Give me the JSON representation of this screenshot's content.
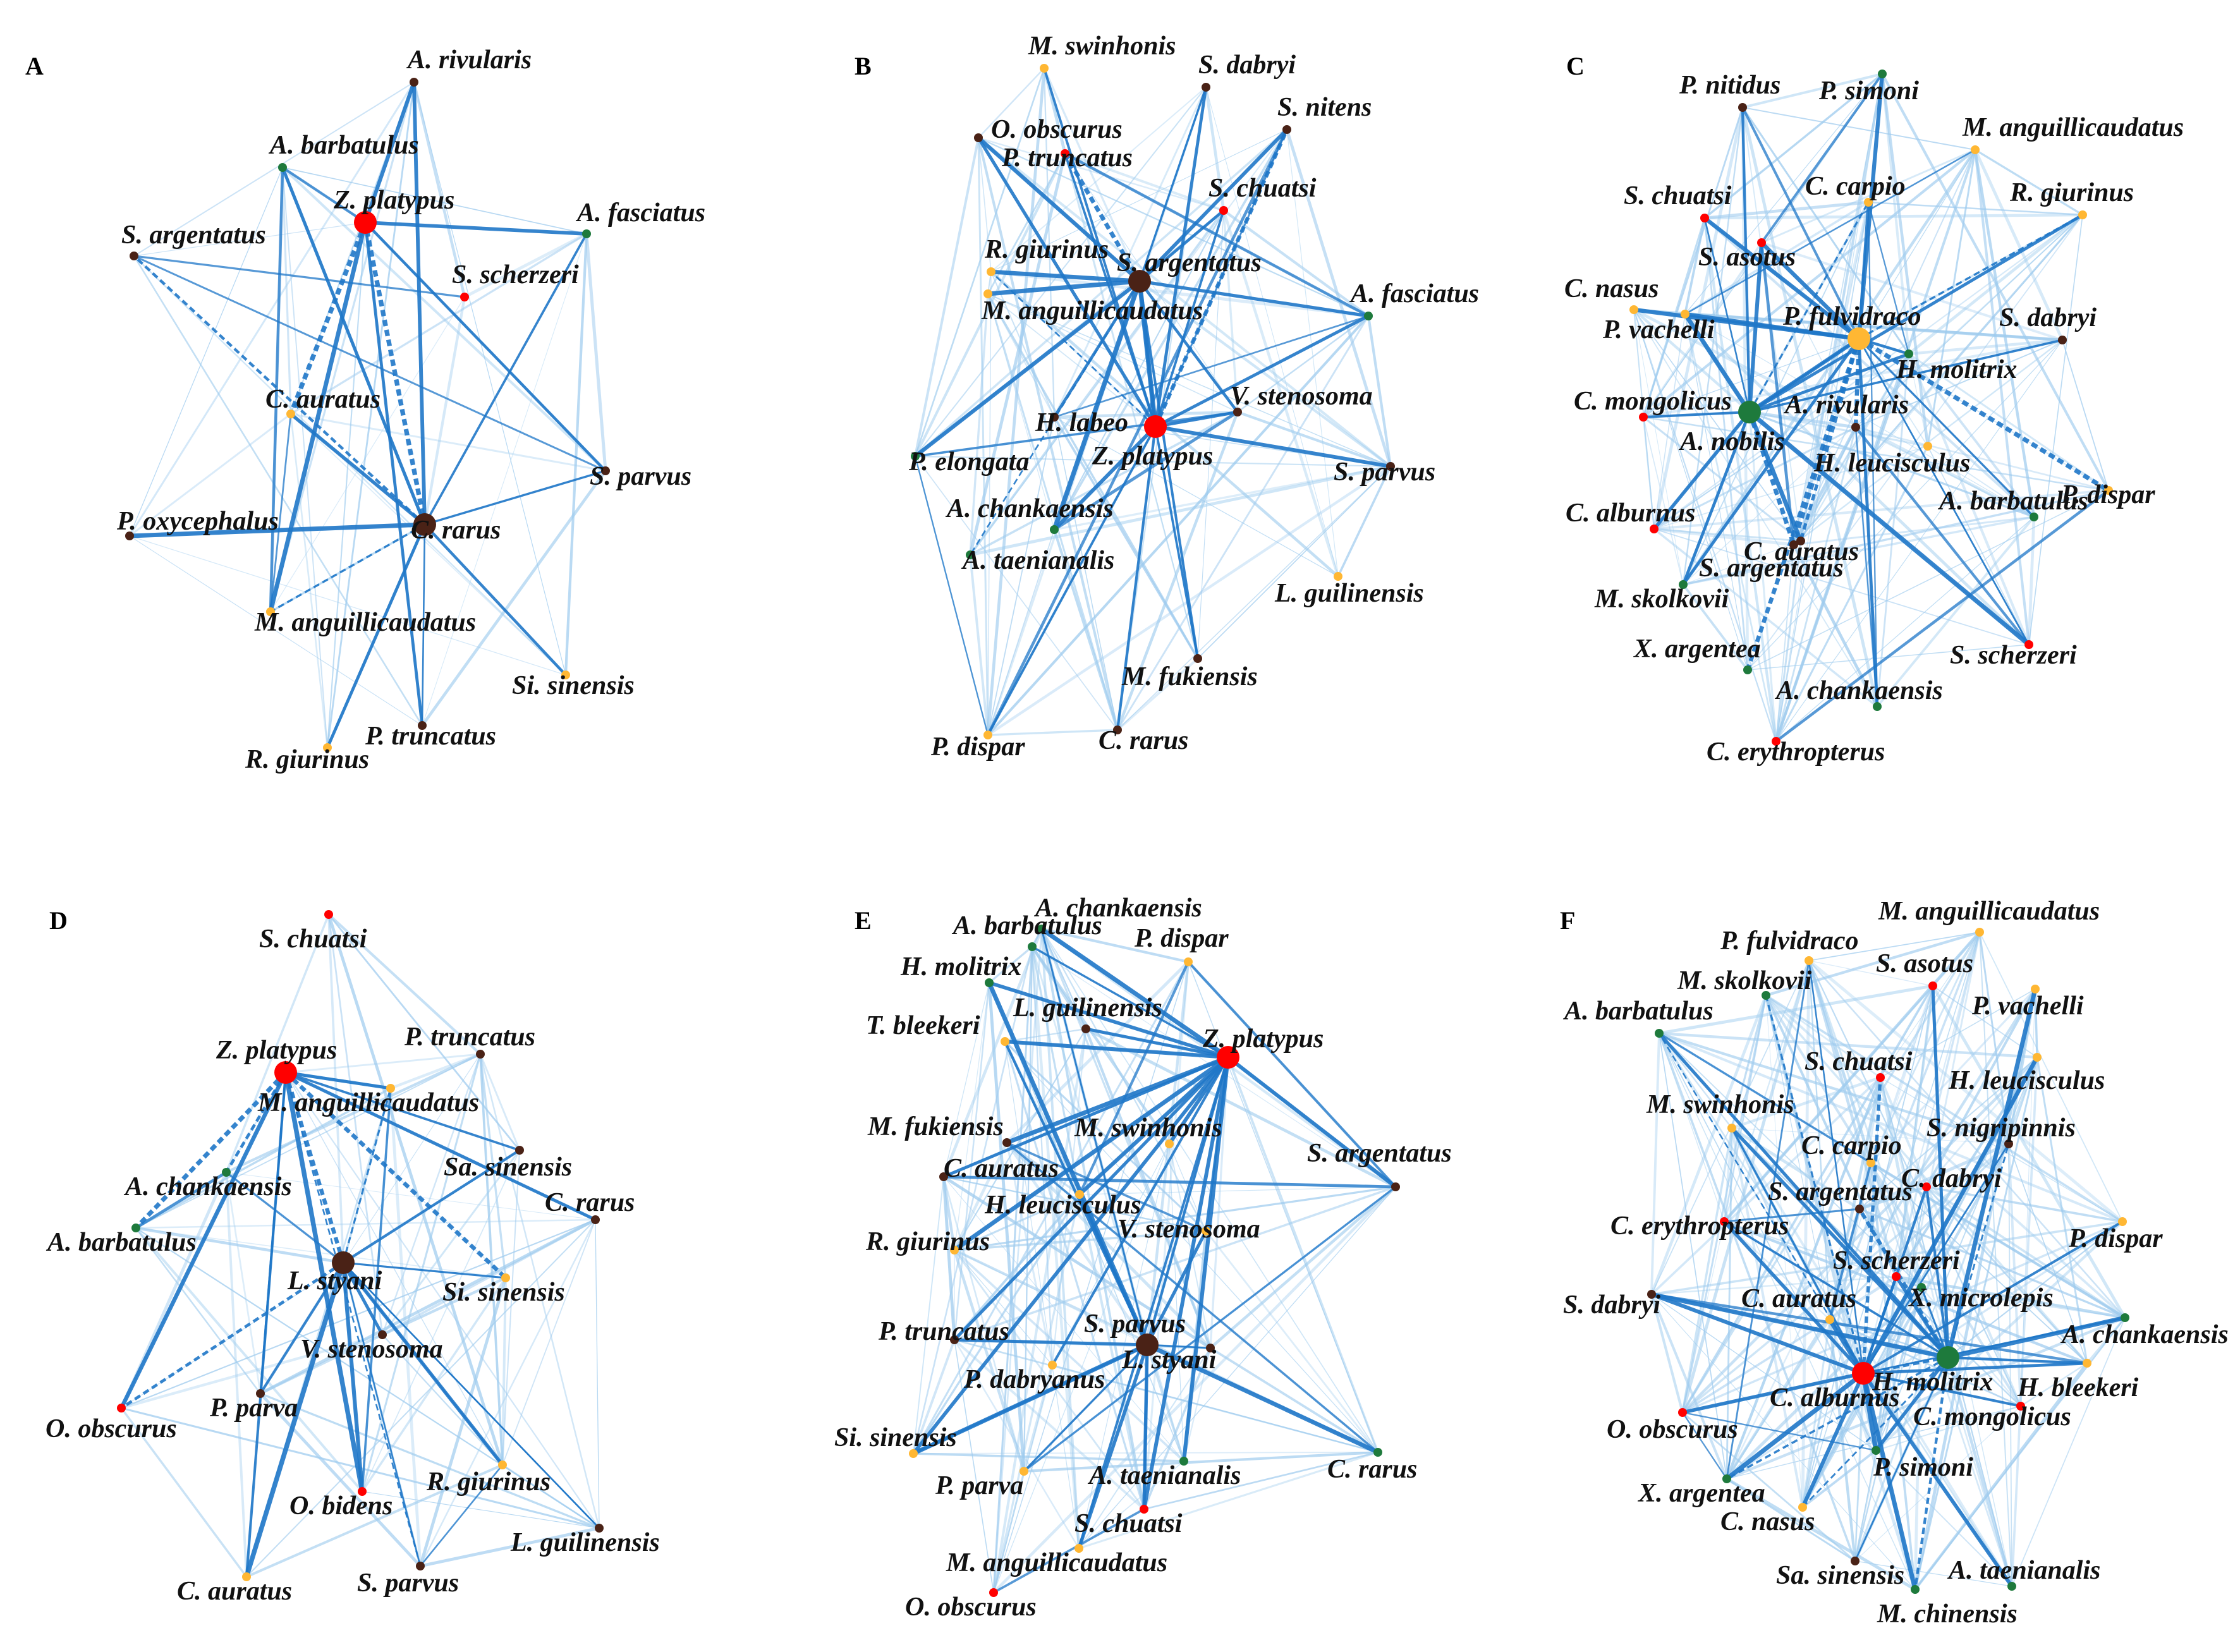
{
  "colors": {
    "red": "#ff0000",
    "dark": "#4a2216",
    "orange": "#ffb733",
    "green": "#1e7a3c",
    "edge_strong": "#1f77c8",
    "edge_weak": "#9ecbee"
  },
  "panels": [
    {
      "id": "A",
      "label": "A",
      "nodes": [
        {
          "name": "A. rivularis",
          "c": "dark",
          "s": 1
        },
        {
          "name": "A. barbatulus",
          "c": "green",
          "s": 1
        },
        {
          "name": "Z. platypus",
          "c": "red",
          "s": 3
        },
        {
          "name": "S. argentatus",
          "c": "dark",
          "s": 1
        },
        {
          "name": "A. fasciatus",
          "c": "green",
          "s": 1
        },
        {
          "name": "S. scherzeri",
          "c": "red",
          "s": 1
        },
        {
          "name": "C. auratus",
          "c": "orange",
          "s": 1
        },
        {
          "name": "S. parvus",
          "c": "dark",
          "s": 1
        },
        {
          "name": "P. oxycephalus",
          "c": "dark",
          "s": 1
        },
        {
          "name": "C. rarus",
          "c": "dark",
          "s": 3
        },
        {
          "name": "M. anguillicaudatus",
          "c": "orange",
          "s": 1
        },
        {
          "name": "Si. sinensis",
          "c": "orange",
          "s": 1
        },
        {
          "name": "P. truncatus",
          "c": "dark",
          "s": 1
        },
        {
          "name": "R. giurinus",
          "c": "orange",
          "s": 1
        }
      ]
    },
    {
      "id": "B",
      "label": "B",
      "nodes": [
        {
          "name": "M. swinhonis",
          "c": "orange",
          "s": 1
        },
        {
          "name": "S. dabryi",
          "c": "dark",
          "s": 1
        },
        {
          "name": "S. nitens",
          "c": "dark",
          "s": 1
        },
        {
          "name": "O. obscurus",
          "c": "dark",
          "s": 1
        },
        {
          "name": "P. truncatus",
          "c": "red",
          "s": 1
        },
        {
          "name": "S. chuatsi",
          "c": "red",
          "s": 1
        },
        {
          "name": "R. giurinus",
          "c": "orange",
          "s": 1
        },
        {
          "name": "S. argentatus",
          "c": "dark",
          "s": 3
        },
        {
          "name": "A. fasciatus",
          "c": "green",
          "s": 1
        },
        {
          "name": "M. anguillicaudatus",
          "c": "orange",
          "s": 1
        },
        {
          "name": "V. stenosoma",
          "c": "dark",
          "s": 1
        },
        {
          "name": "H. labeo",
          "c": "dark",
          "s": 1
        },
        {
          "name": "Z. platypus",
          "c": "red",
          "s": 3
        },
        {
          "name": "P. elongata",
          "c": "green",
          "s": 1
        },
        {
          "name": "S. parvus",
          "c": "dark",
          "s": 1
        },
        {
          "name": "A. chankaensis",
          "c": "green",
          "s": 1
        },
        {
          "name": "A. taenianalis",
          "c": "green",
          "s": 1
        },
        {
          "name": "L. guilinensis",
          "c": "orange",
          "s": 1
        },
        {
          "name": "M. fukiensis",
          "c": "dark",
          "s": 1
        },
        {
          "name": "P. dispar",
          "c": "orange",
          "s": 1
        },
        {
          "name": "C. rarus",
          "c": "dark",
          "s": 1
        }
      ]
    },
    {
      "id": "C",
      "label": "C",
      "nodes": [
        {
          "name": "P. nitidus",
          "c": "dark",
          "s": 1
        },
        {
          "name": "P. simoni",
          "c": "green",
          "s": 1
        },
        {
          "name": "M. anguillicaudatus",
          "c": "orange",
          "s": 1
        },
        {
          "name": "R. giurinus",
          "c": "orange",
          "s": 1
        },
        {
          "name": "C. carpio",
          "c": "orange",
          "s": 1
        },
        {
          "name": "S. chuatsi",
          "c": "red",
          "s": 1
        },
        {
          "name": "S. asotus",
          "c": "red",
          "s": 1
        },
        {
          "name": "C. nasus",
          "c": "orange",
          "s": 1
        },
        {
          "name": "P. fulvidraco",
          "c": "orange",
          "s": 3
        },
        {
          "name": "S. dabryi",
          "c": "dark",
          "s": 1
        },
        {
          "name": "P. vachelli",
          "c": "orange",
          "s": 1
        },
        {
          "name": "H. molitrix",
          "c": "green",
          "s": 1
        },
        {
          "name": "C. mongolicus",
          "c": "red",
          "s": 1
        },
        {
          "name": "A. rivularis",
          "c": "dark",
          "s": 1
        },
        {
          "name": "A. nobilis",
          "c": "green",
          "s": 3
        },
        {
          "name": "H. leucisculus",
          "c": "orange",
          "s": 1
        },
        {
          "name": "P. dispar",
          "c": "orange",
          "s": 1
        },
        {
          "name": "C. alburnus",
          "c": "red",
          "s": 1
        },
        {
          "name": "A. barbatulus",
          "c": "green",
          "s": 1
        },
        {
          "name": "C. auratus",
          "c": "dark",
          "s": 1
        },
        {
          "name": "S. argentatus",
          "c": "dark",
          "s": 1
        },
        {
          "name": "M. skolkovii",
          "c": "green",
          "s": 1
        },
        {
          "name": "X. argentea",
          "c": "green",
          "s": 1
        },
        {
          "name": "S. scherzeri",
          "c": "red",
          "s": 1
        },
        {
          "name": "A. chankaensis",
          "c": "green",
          "s": 1
        },
        {
          "name": "C. erythropterus",
          "c": "red",
          "s": 1
        }
      ]
    },
    {
      "id": "D",
      "label": "D",
      "nodes": [
        {
          "name": "S. chuatsi",
          "c": "red",
          "s": 1
        },
        {
          "name": "P. truncatus",
          "c": "dark",
          "s": 1
        },
        {
          "name": "Z. platypus",
          "c": "red",
          "s": 3
        },
        {
          "name": "M. anguillicaudatus",
          "c": "orange",
          "s": 1
        },
        {
          "name": "Sa. sinensis",
          "c": "dark",
          "s": 1
        },
        {
          "name": "A. chankaensis",
          "c": "green",
          "s": 1
        },
        {
          "name": "C. rarus",
          "c": "dark",
          "s": 1
        },
        {
          "name": "A. barbatulus",
          "c": "green",
          "s": 1
        },
        {
          "name": "L. styani",
          "c": "dark",
          "s": 3
        },
        {
          "name": "Si. sinensis",
          "c": "orange",
          "s": 1
        },
        {
          "name": "V. stenosoma",
          "c": "dark",
          "s": 1
        },
        {
          "name": "O. obscurus",
          "c": "red",
          "s": 1
        },
        {
          "name": "P. parva",
          "c": "dark",
          "s": 1
        },
        {
          "name": "R. giurinus",
          "c": "orange",
          "s": 1
        },
        {
          "name": "O. bidens",
          "c": "red",
          "s": 1
        },
        {
          "name": "L. guilinensis",
          "c": "dark",
          "s": 1
        },
        {
          "name": "C. auratus",
          "c": "orange",
          "s": 1
        },
        {
          "name": "S. parvus",
          "c": "dark",
          "s": 1
        }
      ]
    },
    {
      "id": "E",
      "label": "E",
      "nodes": [
        {
          "name": "A. chankaensis",
          "c": "green",
          "s": 1
        },
        {
          "name": "A. barbatulus",
          "c": "green",
          "s": 1
        },
        {
          "name": "P. dispar",
          "c": "orange",
          "s": 1
        },
        {
          "name": "H. molitrix",
          "c": "green",
          "s": 1
        },
        {
          "name": "L. guilinensis",
          "c": "dark",
          "s": 1
        },
        {
          "name": "Z. platypus",
          "c": "red",
          "s": 3
        },
        {
          "name": "T. bleekeri",
          "c": "orange",
          "s": 1
        },
        {
          "name": "S. argentatus",
          "c": "dark",
          "s": 1
        },
        {
          "name": "M. fukiensis",
          "c": "dark",
          "s": 1
        },
        {
          "name": "M. swinhonis",
          "c": "orange",
          "s": 1
        },
        {
          "name": "C. auratus",
          "c": "dark",
          "s": 1
        },
        {
          "name": "H. leucisculus",
          "c": "orange",
          "s": 1
        },
        {
          "name": "R. giurinus",
          "c": "orange",
          "s": 1
        },
        {
          "name": "V. stenosoma",
          "c": "orange",
          "s": 1
        },
        {
          "name": "S. parvus",
          "c": "dark",
          "s": 3
        },
        {
          "name": "P. truncatus",
          "c": "dark",
          "s": 1
        },
        {
          "name": "L. styani",
          "c": "dark",
          "s": 1
        },
        {
          "name": "P. dabryanus",
          "c": "orange",
          "s": 1
        },
        {
          "name": "Si. sinensis",
          "c": "orange",
          "s": 1
        },
        {
          "name": "C. rarus",
          "c": "green",
          "s": 1
        },
        {
          "name": "P. parva",
          "c": "orange",
          "s": 1
        },
        {
          "name": "A. taenianalis",
          "c": "green",
          "s": 1
        },
        {
          "name": "S. chuatsi",
          "c": "red",
          "s": 1
        },
        {
          "name": "M. anguillicaudatus",
          "c": "orange",
          "s": 1
        },
        {
          "name": "O. obscurus",
          "c": "red",
          "s": 1
        }
      ]
    },
    {
      "id": "F",
      "label": "F",
      "nodes": [
        {
          "name": "M. anguillicaudatus",
          "c": "orange",
          "s": 1
        },
        {
          "name": "P. fulvidraco",
          "c": "orange",
          "s": 1
        },
        {
          "name": "S. asotus",
          "c": "red",
          "s": 1
        },
        {
          "name": "M. skolkovii",
          "c": "green",
          "s": 1
        },
        {
          "name": "P. vachelli",
          "c": "orange",
          "s": 1
        },
        {
          "name": "A. barbatulus",
          "c": "green",
          "s": 1
        },
        {
          "name": "S. chuatsi",
          "c": "red",
          "s": 1
        },
        {
          "name": "H. leucisculus",
          "c": "orange",
          "s": 1
        },
        {
          "name": "M. swinhonis",
          "c": "orange",
          "s": 1
        },
        {
          "name": "S. nigripinnis",
          "c": "dark",
          "s": 1
        },
        {
          "name": "C. carpio",
          "c": "orange",
          "s": 1
        },
        {
          "name": "C. dabryi",
          "c": "red",
          "s": 1
        },
        {
          "name": "S. argentatus",
          "c": "dark",
          "s": 1
        },
        {
          "name": "C. erythropterus",
          "c": "red",
          "s": 1
        },
        {
          "name": "P. dispar",
          "c": "orange",
          "s": 1
        },
        {
          "name": "S. scherzeri",
          "c": "red",
          "s": 1
        },
        {
          "name": "X. microlepis",
          "c": "green",
          "s": 1
        },
        {
          "name": "S. dabryi",
          "c": "dark",
          "s": 1
        },
        {
          "name": "C. auratus",
          "c": "orange",
          "s": 1
        },
        {
          "name": "A. chankaensis",
          "c": "green",
          "s": 1
        },
        {
          "name": "H. molitrix",
          "c": "green",
          "s": 3
        },
        {
          "name": "H. bleekeri",
          "c": "orange",
          "s": 1
        },
        {
          "name": "C. alburnus",
          "c": "red",
          "s": 3
        },
        {
          "name": "O. obscurus",
          "c": "red",
          "s": 1
        },
        {
          "name": "C. mongolicus",
          "c": "red",
          "s": 1
        },
        {
          "name": "P. simoni",
          "c": "green",
          "s": 1
        },
        {
          "name": "X. argentea",
          "c": "green",
          "s": 1
        },
        {
          "name": "C. nasus",
          "c": "orange",
          "s": 1
        },
        {
          "name": "A. taenianalis",
          "c": "green",
          "s": 1
        },
        {
          "name": "Sa. sinensis",
          "c": "dark",
          "s": 1
        },
        {
          "name": "M. chinensis",
          "c": "green",
          "s": 1
        }
      ]
    }
  ]
}
